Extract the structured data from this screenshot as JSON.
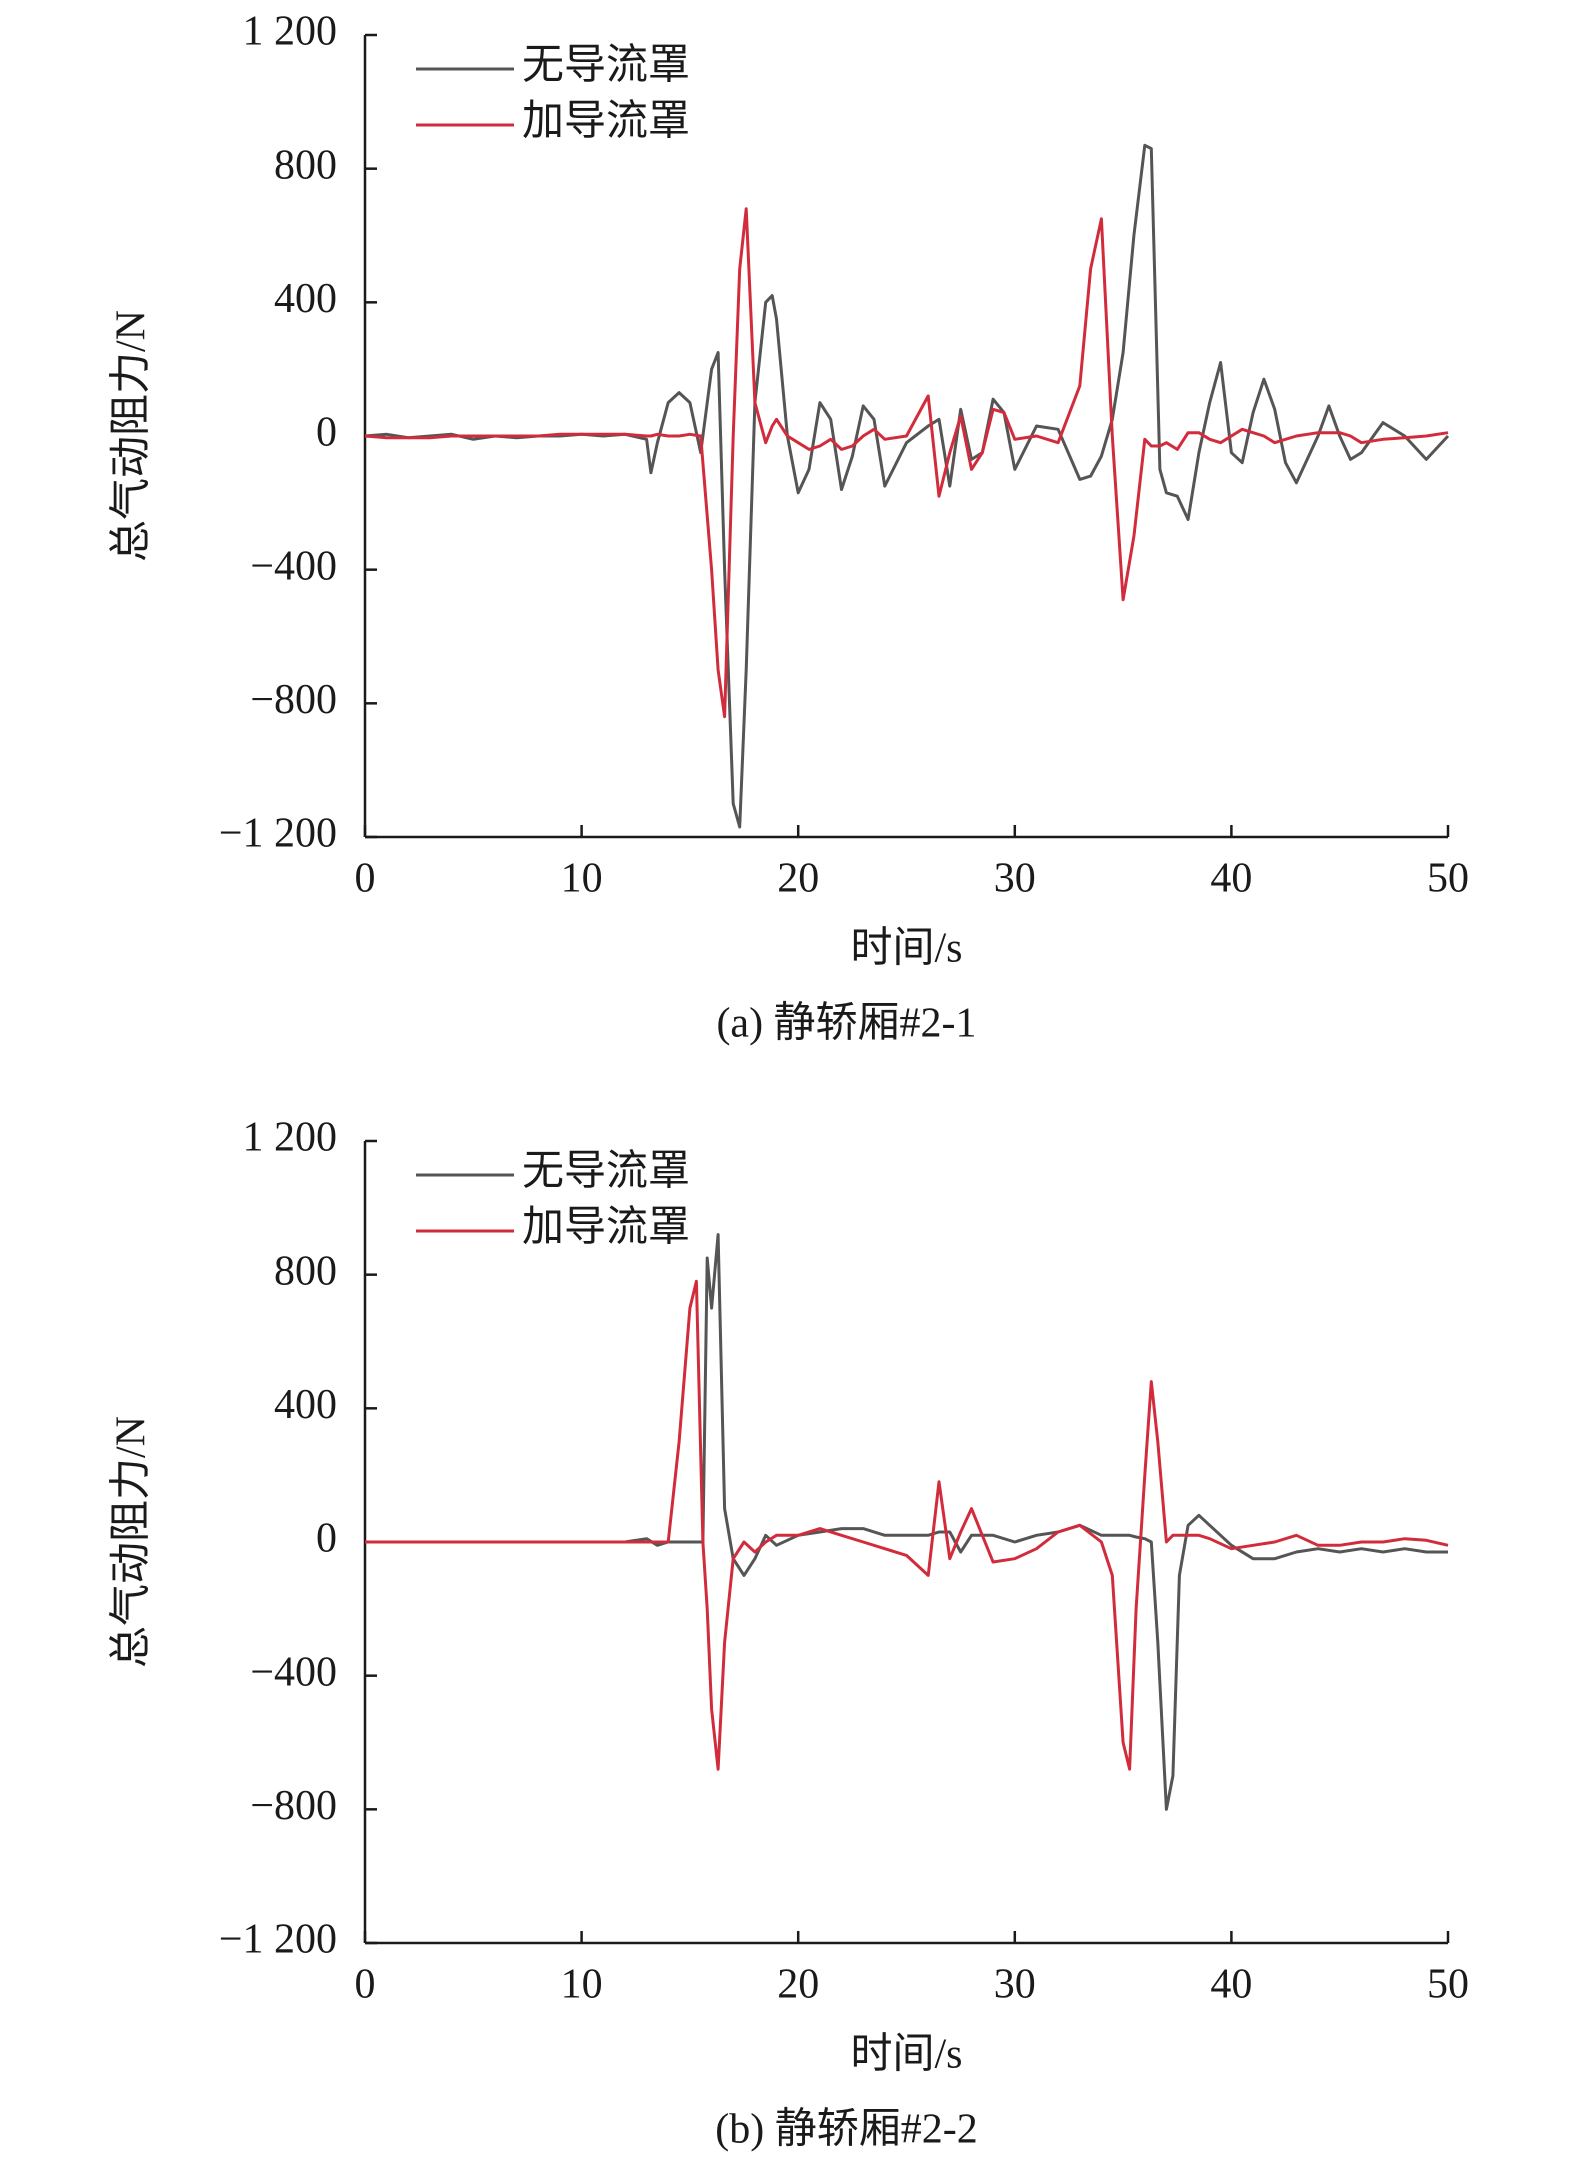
{
  "chart_data": [
    {
      "type": "line",
      "caption": "(a) 静轿厢#2-1",
      "x_label": "时间/s",
      "y_label": "总气动阻力/N",
      "xlim": [
        0,
        50
      ],
      "xticks": [
        0,
        10,
        20,
        30,
        40,
        50
      ],
      "ylim": [
        -1200,
        1200
      ],
      "yticks": [
        {
          "value": -1200,
          "label": "−1 200"
        },
        {
          "value": -800,
          "label": "−800"
        },
        {
          "value": -400,
          "label": "−400"
        },
        0,
        400,
        800,
        {
          "value": 1200,
          "label": "1 200"
        }
      ],
      "legend": "upper left",
      "x": [
        0,
        1,
        2,
        3,
        4,
        5,
        6,
        7,
        8,
        9,
        10,
        11,
        12,
        13,
        13.2,
        13.5,
        14,
        14.5,
        15,
        15.5,
        16,
        16.3,
        16.6,
        17,
        17.3,
        17.6,
        18,
        18.5,
        18.8,
        19,
        19.5,
        20,
        20.5,
        21,
        21.5,
        22,
        22.5,
        23,
        23.5,
        24,
        25,
        26,
        26.5,
        27,
        27.5,
        28,
        28.5,
        29,
        29.5,
        30,
        31,
        32,
        33,
        33.5,
        34,
        34.5,
        35,
        35.5,
        36,
        36.3,
        36.7,
        37,
        37.5,
        38,
        38.5,
        39,
        39.5,
        40,
        40.5,
        41,
        41.5,
        42,
        42.5,
        43,
        44,
        44.5,
        45,
        45.5,
        46,
        47,
        48,
        49,
        50
      ],
      "series": [
        {
          "name": "无导流罩",
          "color": "#555555",
          "values": [
            0,
            5,
            -5,
            0,
            5,
            -10,
            0,
            -5,
            0,
            0,
            5,
            0,
            5,
            -10,
            -110,
            -20,
            100,
            130,
            100,
            -50,
            200,
            250,
            -400,
            -1100,
            -1170,
            -700,
            100,
            400,
            420,
            350,
            0,
            -170,
            -100,
            100,
            50,
            -160,
            -60,
            90,
            50,
            -150,
            -20,
            30,
            50,
            -150,
            80,
            -70,
            -50,
            110,
            70,
            -100,
            30,
            20,
            -130,
            -120,
            -60,
            50,
            250,
            600,
            870,
            860,
            -100,
            -170,
            -180,
            -250,
            -50,
            100,
            220,
            -50,
            -80,
            70,
            170,
            80,
            -80,
            -140,
            0,
            90,
            0,
            -70,
            -50,
            40,
            0,
            -70,
            0
          ]
        },
        {
          "name": "加导流罩",
          "color": "#d22c3c",
          "values": [
            0,
            -5,
            -5,
            -5,
            0,
            0,
            0,
            0,
            0,
            5,
            5,
            5,
            5,
            0,
            0,
            5,
            0,
            0,
            5,
            0,
            -400,
            -700,
            -840,
            0,
            500,
            680,
            100,
            -20,
            30,
            50,
            0,
            -20,
            -40,
            -30,
            -10,
            -40,
            -30,
            0,
            20,
            -10,
            0,
            120,
            -180,
            -50,
            60,
            -100,
            -50,
            80,
            70,
            -10,
            0,
            -20,
            150,
            500,
            650,
            0,
            -490,
            -300,
            -10,
            -30,
            -30,
            -20,
            -40,
            10,
            10,
            -10,
            -20,
            0,
            20,
            10,
            0,
            -20,
            -10,
            0,
            10,
            10,
            10,
            0,
            -20,
            -10,
            -5,
            0,
            10
          ]
        }
      ]
    },
    {
      "type": "line",
      "caption": "(b) 静轿厢#2-2",
      "x_label": "时间/s",
      "y_label": "总气动阻力/N",
      "xlim": [
        0,
        50
      ],
      "xticks": [
        0,
        10,
        20,
        30,
        40,
        50
      ],
      "ylim": [
        -1200,
        1200
      ],
      "yticks": [
        {
          "value": -1200,
          "label": "−1 200"
        },
        {
          "value": -800,
          "label": "−800"
        },
        {
          "value": -400,
          "label": "−400"
        },
        0,
        400,
        800,
        {
          "value": 1200,
          "label": "1 200"
        }
      ],
      "legend": "upper left",
      "x": [
        0,
        2,
        4,
        6,
        8,
        10,
        12,
        13,
        13.5,
        14,
        14.5,
        15,
        15.3,
        15.6,
        15.8,
        16,
        16.3,
        16.6,
        17,
        17.5,
        18,
        18.5,
        19,
        20,
        21,
        22,
        23,
        24,
        25,
        26,
        26.5,
        27,
        27.5,
        28,
        29,
        30,
        31,
        32,
        33,
        34,
        34.5,
        35,
        35.3,
        35.6,
        36,
        36.3,
        36.6,
        37,
        37.3,
        37.6,
        38,
        38.5,
        39,
        40,
        41,
        42,
        43,
        44,
        45,
        46,
        47,
        48,
        49,
        50
      ],
      "series": [
        {
          "name": "无导流罩",
          "color": "#555555",
          "values": [
            0,
            0,
            0,
            0,
            0,
            0,
            0,
            10,
            -10,
            0,
            0,
            0,
            0,
            0,
            850,
            700,
            920,
            100,
            -50,
            -100,
            -50,
            20,
            -10,
            20,
            30,
            40,
            40,
            20,
            20,
            20,
            30,
            30,
            -30,
            20,
            20,
            0,
            20,
            30,
            50,
            20,
            20,
            20,
            20,
            15,
            10,
            0,
            -300,
            -800,
            -700,
            -100,
            50,
            80,
            50,
            -10,
            -50,
            -50,
            -30,
            -20,
            -30,
            -20,
            -30,
            -20,
            -30,
            -30
          ]
        },
        {
          "name": "加导流罩",
          "color": "#d22c3c",
          "values": [
            0,
            0,
            0,
            0,
            0,
            0,
            0,
            0,
            0,
            0,
            300,
            700,
            780,
            0,
            -200,
            -500,
            -680,
            -300,
            -50,
            0,
            -30,
            0,
            20,
            20,
            40,
            20,
            0,
            -20,
            -40,
            -100,
            180,
            -50,
            30,
            100,
            -60,
            -50,
            -20,
            30,
            50,
            0,
            -100,
            -600,
            -680,
            -200,
            200,
            480,
            300,
            0,
            20,
            20,
            20,
            20,
            10,
            -20,
            -10,
            0,
            20,
            -10,
            -10,
            0,
            0,
            10,
            5,
            -10
          ]
        }
      ]
    }
  ]
}
